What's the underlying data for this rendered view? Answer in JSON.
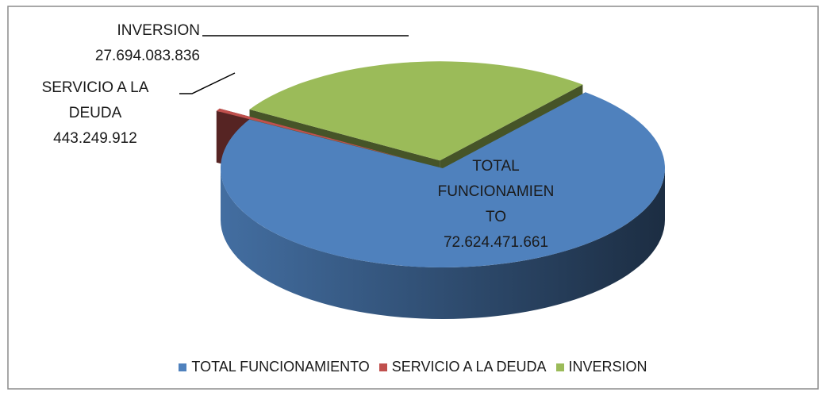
{
  "chart_data": {
    "type": "pie",
    "categories": [
      "TOTAL FUNCIONAMIENTO",
      "SERVICIO A LA DEUDA",
      "INVERSION"
    ],
    "values": [
      72624471661,
      443249912,
      27694083836
    ],
    "value_labels": [
      "72.624.471.661",
      "443.249.912",
      "27.694.083.836"
    ],
    "colors": [
      "#4f81bd",
      "#c0504d",
      "#9bbb59"
    ],
    "legend": "bottom"
  }
}
